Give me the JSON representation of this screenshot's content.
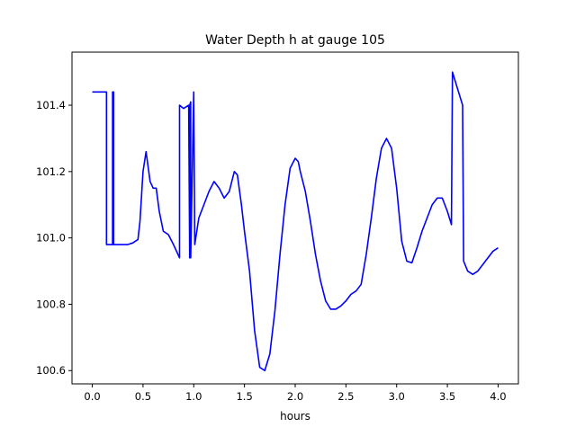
{
  "chart_data": {
    "type": "line",
    "title": "Water Depth h at gauge 105",
    "xlabel": "hours",
    "ylabel": "",
    "xlim": [
      -0.2,
      4.2
    ],
    "ylim": [
      100.56,
      101.56
    ],
    "xticks": [
      0.0,
      0.5,
      1.0,
      1.5,
      2.0,
      2.5,
      3.0,
      3.5,
      4.0
    ],
    "xtick_labels": [
      "0.0",
      "0.5",
      "1.0",
      "1.5",
      "2.0",
      "2.5",
      "3.0",
      "3.5",
      "4.0"
    ],
    "yticks": [
      100.6,
      100.8,
      101.0,
      101.2,
      101.4
    ],
    "ytick_labels": [
      "100.6",
      "100.8",
      "101.0",
      "101.2",
      "101.4"
    ],
    "grid": false,
    "legend": "none",
    "series": [
      {
        "color": "#0000ff",
        "x": [
          0.0,
          0.14,
          0.14,
          0.2,
          0.2,
          0.21,
          0.21,
          0.35,
          0.4,
          0.45,
          0.47,
          0.5,
          0.53,
          0.57,
          0.6,
          0.63,
          0.66,
          0.7,
          0.75,
          0.8,
          0.86,
          0.86,
          0.9,
          0.95,
          0.96,
          0.96,
          0.97,
          0.97,
          1.0,
          1.01,
          1.01,
          1.05,
          1.1,
          1.15,
          1.2,
          1.25,
          1.3,
          1.35,
          1.4,
          1.43,
          1.47,
          1.5,
          1.55,
          1.6,
          1.65,
          1.7,
          1.75,
          1.8,
          1.85,
          1.9,
          1.95,
          2.0,
          2.03,
          2.05,
          2.1,
          2.15,
          2.2,
          2.25,
          2.3,
          2.35,
          2.4,
          2.45,
          2.5,
          2.55,
          2.6,
          2.65,
          2.7,
          2.75,
          2.8,
          2.85,
          2.9,
          2.95,
          3.0,
          3.05,
          3.1,
          3.15,
          3.2,
          3.25,
          3.3,
          3.35,
          3.4,
          3.45,
          3.5,
          3.54,
          3.55,
          3.6,
          3.65,
          3.66,
          3.7,
          3.75,
          3.8,
          3.85,
          3.9,
          3.95,
          4.0
        ],
        "y": [
          101.44,
          101.44,
          100.98,
          100.98,
          101.44,
          101.44,
          100.98,
          100.98,
          100.985,
          100.995,
          101.05,
          101.2,
          101.26,
          101.17,
          101.15,
          101.15,
          101.08,
          101.02,
          101.01,
          100.98,
          100.94,
          101.4,
          101.39,
          101.4,
          100.94,
          101.4,
          101.41,
          100.94,
          101.44,
          100.98,
          100.98,
          101.06,
          101.1,
          101.14,
          101.17,
          101.15,
          101.12,
          101.14,
          101.2,
          101.19,
          101.1,
          101.02,
          100.9,
          100.72,
          100.61,
          100.6,
          100.65,
          100.78,
          100.95,
          101.1,
          101.21,
          101.24,
          101.23,
          101.2,
          101.14,
          101.05,
          100.95,
          100.87,
          100.81,
          100.785,
          100.785,
          100.795,
          100.81,
          100.83,
          100.84,
          100.86,
          100.95,
          101.06,
          101.18,
          101.27,
          101.3,
          101.27,
          101.15,
          100.99,
          100.93,
          100.925,
          100.97,
          101.02,
          101.06,
          101.1,
          101.12,
          101.12,
          101.08,
          101.04,
          101.5,
          101.45,
          101.4,
          100.93,
          100.9,
          100.89,
          100.9,
          100.92,
          100.94,
          100.96,
          100.97
        ]
      }
    ]
  }
}
